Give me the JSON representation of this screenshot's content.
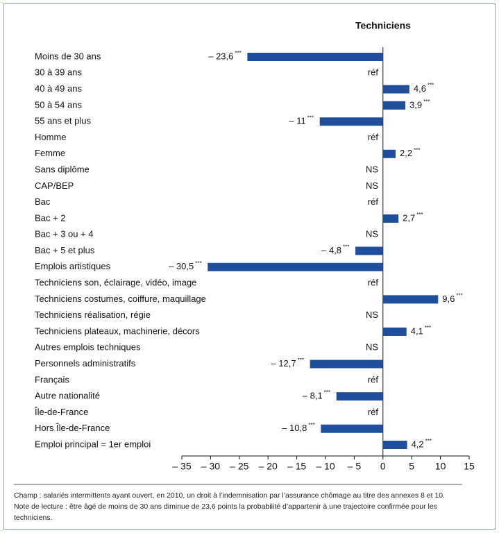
{
  "chart_data": {
    "type": "hbar",
    "title": "Techniciens",
    "categories": [
      "Moins de 30 ans",
      "30 à 39 ans",
      "40 à 49 ans",
      "50 à 54 ans",
      "55 ans et plus",
      "Homme",
      "Femme",
      "Sans diplôme",
      "CAP/BEP",
      "Bac",
      "Bac + 2",
      "Bac + 3 ou + 4",
      "Bac + 5 et plus",
      "Emplois artistiques",
      "Techniciens son, éclairage, vidéo, image",
      "Techniciens costumes, coiffure, maquillage",
      "Techniciens réalisation, régie",
      "Techniciens plateaux, machinerie, décors",
      "Autres emplois techniques",
      "Personnels administratifs",
      "Français",
      "Autre nationalité",
      "Île-de-France",
      "Hors Île-de-France",
      "Emploi principal = 1er emploi"
    ],
    "values": [
      -23.6,
      null,
      4.6,
      3.9,
      -11,
      null,
      2.2,
      null,
      null,
      null,
      2.7,
      null,
      -4.8,
      -30.5,
      null,
      9.6,
      null,
      4.1,
      null,
      -12.7,
      null,
      -8.1,
      null,
      -10.8,
      4.2
    ],
    "value_labels": [
      "– 23,6",
      "réf",
      "4,6",
      "3,9",
      "– 11",
      "réf",
      "2,2",
      "NS",
      "NS",
      "réf",
      "2,7",
      "NS",
      "– 4,8",
      "– 30,5",
      "réf",
      "9,6",
      "NS",
      "4,1",
      "NS",
      "– 12,7",
      "réf",
      "– 8,1",
      "réf",
      "– 10,8",
      "4,2"
    ],
    "significance": [
      "***",
      null,
      "***",
      "***",
      "***",
      null,
      "***",
      null,
      null,
      null,
      "***",
      null,
      "***",
      "***",
      null,
      "***",
      null,
      "***",
      null,
      "***",
      null,
      "***",
      null,
      "***",
      "***"
    ],
    "color": "#1f4e9c",
    "xlim": [
      -35,
      15
    ],
    "xticks": [
      {
        "value": -35,
        "label": "– 35"
      },
      {
        "value": -30,
        "label": "– 30"
      },
      {
        "value": -25,
        "label": "– 25"
      },
      {
        "value": -20,
        "label": "– 20"
      },
      {
        "value": -15,
        "label": "– 15"
      },
      {
        "value": -10,
        "label": "– 10"
      },
      {
        "value": -5,
        "label": "– 5"
      },
      0,
      5,
      10,
      15
    ],
    "notes": [
      "Champ : salariés intermittents ayant ouvert, en 2010, un droit à l’indemnisation par l’assurance chômage au titre des annexes 8 et 10.",
      "Note de lecture : être âgé de moins de 30 ans diminue de 23,6 points la probabilité d’appartenir à une trajectoire confirmée pour les techniciens."
    ]
  }
}
